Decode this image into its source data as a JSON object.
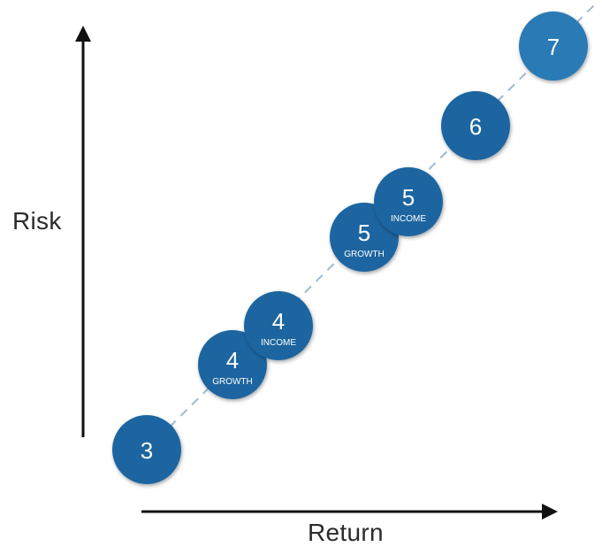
{
  "axes": {
    "y_label": "Risk",
    "x_label": "Return"
  },
  "colors": {
    "bubble": "#1b65a0",
    "bubble_top": "#2c7ab5",
    "axis": "#111111",
    "dashed_line": "#9fb9cf"
  },
  "bubbles": [
    {
      "number": "3",
      "sub": ""
    },
    {
      "number": "4",
      "sub": "GROWTH"
    },
    {
      "number": "4",
      "sub": "INCOME"
    },
    {
      "number": "5",
      "sub": "GROWTH"
    },
    {
      "number": "5",
      "sub": "INCOME"
    },
    {
      "number": "6",
      "sub": ""
    },
    {
      "number": "7",
      "sub": ""
    }
  ]
}
